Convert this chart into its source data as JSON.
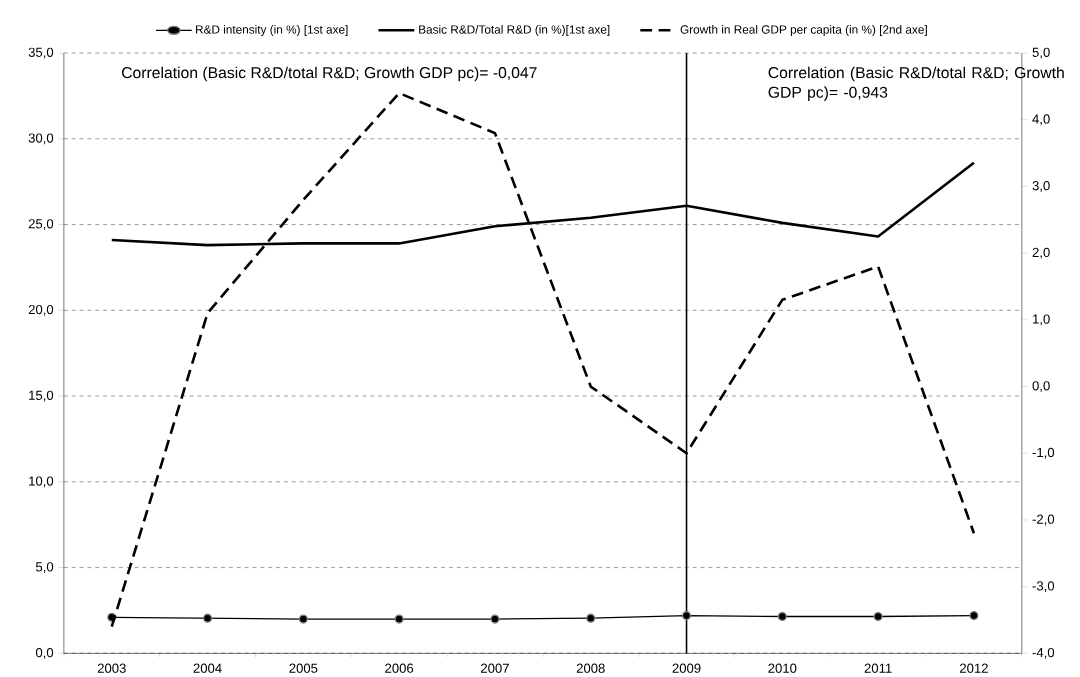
{
  "chart_data": {
    "type": "line",
    "categories": [
      "2003",
      "2004",
      "2005",
      "2006",
      "2007",
      "2008",
      "2009",
      "2010",
      "2011",
      "2012"
    ],
    "series": [
      {
        "name": "R&D intensity (in %) [1st axe]",
        "color": "#000000",
        "marker": "circle",
        "line_style": "solid",
        "values": [
          2.1,
          2.05,
          2.0,
          2.0,
          2.0,
          2.05,
          2.2,
          2.15,
          2.15,
          2.2
        ]
      },
      {
        "name": "Basic R&D/Total R&D (in %)[1st axe]",
        "color": "#000000",
        "marker": "none",
        "line_style": "solid",
        "values": [
          24.1,
          23.8,
          23.9,
          23.9,
          24.9,
          25.4,
          26.1,
          25.1,
          24.3,
          28.6
        ]
      },
      {
        "name": "Growth in Real GDP per capita (in %) [2nd axe]",
        "color": "#000000",
        "marker": "none",
        "line_style": "dashed",
        "axis": "y2",
        "values": [
          -3.6,
          1.1,
          2.8,
          4.4,
          3.8,
          0.0,
          -1.0,
          1.3,
          1.8,
          -2.2
        ]
      }
    ],
    "ylim": [
      0,
      35
    ],
    "yticks": [
      {
        "value": 0,
        "label": "0,0"
      },
      {
        "value": 5,
        "label": "5,0"
      },
      {
        "value": 10,
        "label": "10,0"
      },
      {
        "value": 15,
        "label": "15,0"
      },
      {
        "value": 20,
        "label": "20,0"
      },
      {
        "value": 25,
        "label": "25,0"
      },
      {
        "value": 30,
        "label": "30,0"
      },
      {
        "value": 35,
        "label": "35,0"
      }
    ],
    "y2lim": [
      -4,
      5
    ],
    "y2ticks": [
      {
        "value": -4,
        "label": "-4,0"
      },
      {
        "value": -3,
        "label": "-3,0"
      },
      {
        "value": -2,
        "label": "-2,0"
      },
      {
        "value": -1,
        "label": "-1,0"
      },
      {
        "value": 0,
        "label": "0,0"
      },
      {
        "value": 1,
        "label": "1,0"
      },
      {
        "value": 2,
        "label": "2,0"
      },
      {
        "value": 3,
        "label": "3,0"
      },
      {
        "value": 4,
        "label": "4,0"
      },
      {
        "value": 5,
        "label": "5,0"
      }
    ],
    "ref_lines": [
      {
        "axis": "x",
        "value": "2009",
        "color": "#000000",
        "line_style": "solid"
      }
    ],
    "annotations": [
      "Correlation (Basic R&D/total R&D; Growth GDP pc)= -0,047",
      "Correlation (Basic R&D/total R&D; Growth GDP pc)= -0,943"
    ],
    "grid": "y",
    "legend": "top"
  }
}
